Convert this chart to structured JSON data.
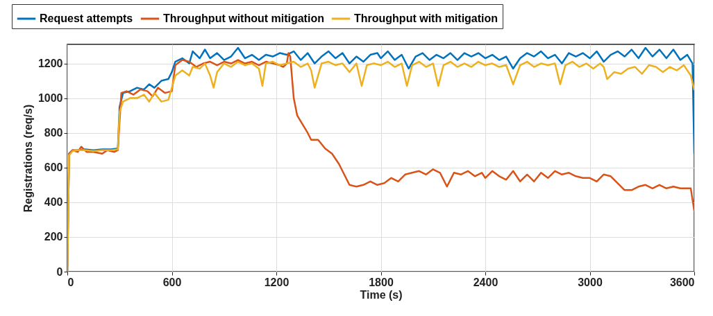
{
  "chart_data": {
    "type": "line",
    "xlabel": "Time (s)",
    "ylabel": "Registrations (req/s)",
    "xlim": [
      0,
      3600
    ],
    "xticks": [
      0,
      600,
      1200,
      1800,
      2400,
      3000,
      3600
    ],
    "ylim": [
      0,
      1310
    ],
    "yticks": [
      0,
      200,
      400,
      600,
      800,
      1000,
      1200
    ],
    "grid": true,
    "legend": "top",
    "line_style": "solid",
    "series": [
      {
        "name": "Request attempts",
        "color": "#0072bd",
        "x": [
          0,
          10,
          30,
          60,
          100,
          150,
          200,
          250,
          290,
          300,
          320,
          360,
          400,
          440,
          470,
          500,
          540,
          580,
          600,
          620,
          660,
          700,
          720,
          760,
          790,
          820,
          860,
          900,
          940,
          980,
          1020,
          1060,
          1100,
          1140,
          1180,
          1220,
          1260,
          1300,
          1340,
          1380,
          1420,
          1460,
          1500,
          1540,
          1580,
          1620,
          1660,
          1700,
          1740,
          1780,
          1800,
          1840,
          1880,
          1920,
          1960,
          2000,
          2040,
          2080,
          2120,
          2160,
          2200,
          2240,
          2280,
          2320,
          2360,
          2400,
          2440,
          2480,
          2520,
          2560,
          2600,
          2640,
          2680,
          2720,
          2760,
          2800,
          2840,
          2880,
          2920,
          2960,
          3000,
          3040,
          3080,
          3120,
          3160,
          3200,
          3240,
          3280,
          3320,
          3360,
          3400,
          3440,
          3480,
          3520,
          3560,
          3590,
          3600
        ],
        "values": [
          0,
          680,
          700,
          700,
          705,
          700,
          705,
          705,
          710,
          950,
          1030,
          1040,
          1060,
          1050,
          1080,
          1060,
          1100,
          1110,
          1150,
          1210,
          1230,
          1200,
          1270,
          1230,
          1280,
          1230,
          1260,
          1220,
          1240,
          1290,
          1230,
          1250,
          1220,
          1250,
          1240,
          1260,
          1250,
          1270,
          1220,
          1260,
          1200,
          1240,
          1270,
          1230,
          1260,
          1200,
          1240,
          1210,
          1250,
          1260,
          1230,
          1270,
          1220,
          1250,
          1170,
          1240,
          1260,
          1220,
          1250,
          1230,
          1260,
          1220,
          1260,
          1240,
          1260,
          1230,
          1250,
          1220,
          1240,
          1170,
          1230,
          1260,
          1240,
          1270,
          1230,
          1250,
          1200,
          1260,
          1240,
          1260,
          1230,
          1270,
          1210,
          1250,
          1270,
          1240,
          1280,
          1230,
          1290,
          1240,
          1280,
          1230,
          1280,
          1220,
          1250,
          1200,
          680
        ]
      },
      {
        "name": "Throughput without mitigation",
        "color": "#d95319",
        "x": [
          0,
          10,
          30,
          60,
          80,
          110,
          150,
          200,
          230,
          270,
          290,
          310,
          340,
          380,
          420,
          460,
          490,
          520,
          560,
          600,
          620,
          660,
          700,
          740,
          780,
          820,
          860,
          900,
          940,
          980,
          1020,
          1060,
          1100,
          1140,
          1180,
          1220,
          1240,
          1260,
          1270,
          1280,
          1300,
          1320,
          1350,
          1380,
          1400,
          1440,
          1480,
          1520,
          1560,
          1590,
          1620,
          1660,
          1700,
          1740,
          1780,
          1820,
          1860,
          1900,
          1940,
          1980,
          2020,
          2060,
          2100,
          2140,
          2180,
          2220,
          2260,
          2300,
          2340,
          2380,
          2400,
          2440,
          2480,
          2520,
          2560,
          2600,
          2640,
          2680,
          2720,
          2760,
          2800,
          2840,
          2880,
          2920,
          2960,
          3000,
          3040,
          3080,
          3120,
          3160,
          3200,
          3240,
          3280,
          3320,
          3360,
          3400,
          3440,
          3480,
          3520,
          3580,
          3600
        ],
        "values": [
          0,
          680,
          700,
          690,
          720,
          690,
          690,
          680,
          700,
          690,
          700,
          1030,
          1040,
          1020,
          1050,
          1040,
          1010,
          1060,
          1030,
          1040,
          1190,
          1220,
          1210,
          1180,
          1200,
          1210,
          1190,
          1210,
          1200,
          1220,
          1200,
          1210,
          1190,
          1210,
          1200,
          1190,
          1180,
          1200,
          1260,
          1240,
          1000,
          900,
          850,
          800,
          760,
          760,
          710,
          680,
          620,
          560,
          500,
          490,
          500,
          520,
          500,
          510,
          540,
          520,
          560,
          570,
          580,
          560,
          590,
          570,
          490,
          570,
          560,
          580,
          550,
          570,
          540,
          580,
          550,
          530,
          580,
          520,
          560,
          520,
          570,
          540,
          580,
          560,
          570,
          550,
          540,
          540,
          520,
          560,
          550,
          510,
          470,
          470,
          490,
          500,
          480,
          500,
          480,
          490,
          480,
          480,
          350
        ]
      },
      {
        "name": "Throughput with mitigation",
        "color": "#edb120",
        "x": [
          0,
          10,
          30,
          60,
          100,
          150,
          200,
          250,
          290,
          300,
          320,
          360,
          400,
          440,
          470,
          500,
          540,
          580,
          600,
          620,
          660,
          700,
          720,
          760,
          790,
          820,
          840,
          860,
          900,
          940,
          980,
          1020,
          1060,
          1100,
          1120,
          1140,
          1180,
          1220,
          1260,
          1300,
          1340,
          1380,
          1400,
          1420,
          1460,
          1500,
          1540,
          1580,
          1620,
          1660,
          1690,
          1720,
          1760,
          1800,
          1840,
          1880,
          1920,
          1950,
          1980,
          2020,
          2060,
          2100,
          2130,
          2160,
          2200,
          2240,
          2280,
          2320,
          2360,
          2400,
          2440,
          2480,
          2520,
          2560,
          2600,
          2640,
          2680,
          2720,
          2760,
          2800,
          2830,
          2860,
          2900,
          2940,
          2980,
          3020,
          3060,
          3080,
          3100,
          3140,
          3180,
          3220,
          3260,
          3300,
          3340,
          3380,
          3420,
          3460,
          3500,
          3540,
          3580,
          3600
        ],
        "values": [
          0,
          670,
          695,
          700,
          700,
          695,
          700,
          700,
          705,
          920,
          980,
          1000,
          1000,
          1020,
          980,
          1030,
          980,
          990,
          1060,
          1130,
          1160,
          1130,
          1180,
          1170,
          1200,
          1130,
          1060,
          1150,
          1200,
          1180,
          1210,
          1190,
          1200,
          1170,
          1070,
          1200,
          1210,
          1190,
          1200,
          1210,
          1180,
          1200,
          1160,
          1060,
          1200,
          1210,
          1190,
          1200,
          1150,
          1200,
          1070,
          1190,
          1200,
          1190,
          1210,
          1180,
          1200,
          1070,
          1190,
          1210,
          1180,
          1200,
          1070,
          1190,
          1210,
          1180,
          1200,
          1180,
          1210,
          1190,
          1200,
          1180,
          1190,
          1080,
          1190,
          1210,
          1180,
          1200,
          1190,
          1200,
          1080,
          1190,
          1210,
          1180,
          1200,
          1170,
          1200,
          1180,
          1110,
          1150,
          1140,
          1170,
          1180,
          1140,
          1190,
          1180,
          1150,
          1180,
          1160,
          1190,
          1130,
          1050
        ]
      }
    ]
  }
}
